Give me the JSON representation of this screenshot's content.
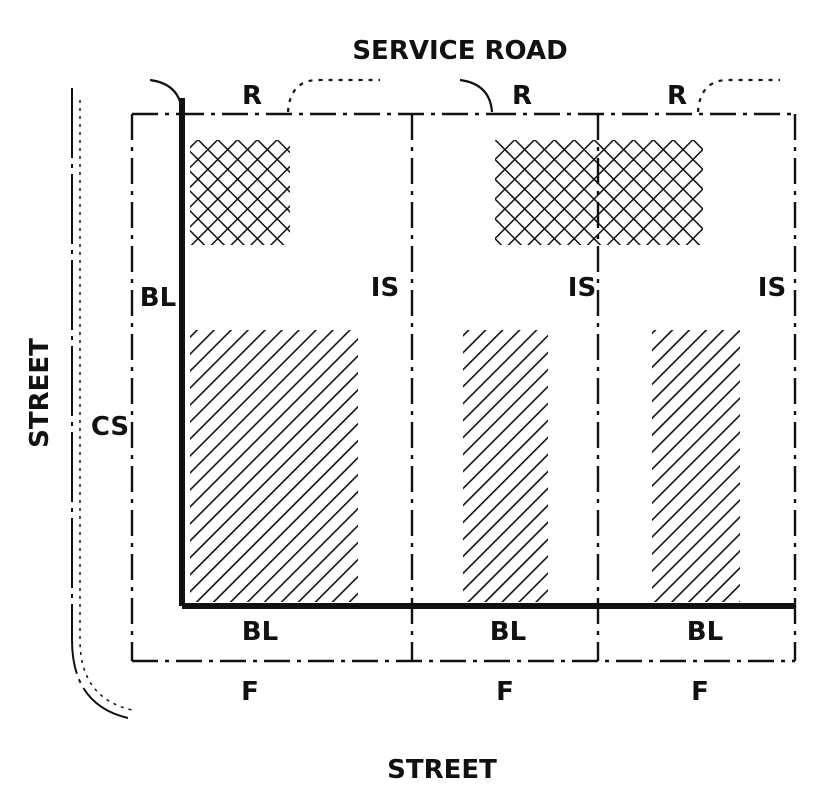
{
  "diagram": {
    "top_road_label": "SERVICE ROAD",
    "bottom_street_label": "STREET",
    "left_street_label": "STREET",
    "corner_side_label": "CS",
    "lots": [
      {
        "rear_label": "R",
        "interior_side_label": "IS",
        "front_label": "F",
        "build_line_label": "BL",
        "side_build_line_label": "BL"
      },
      {
        "rear_label": "R",
        "interior_side_label": "IS",
        "front_label": "F",
        "build_line_label": "BL"
      },
      {
        "rear_label": "R",
        "interior_side_label": "IS",
        "front_label": "F",
        "build_line_label": "BL"
      }
    ]
  },
  "colors": {
    "ink": "#111111",
    "background": "#ffffff"
  }
}
